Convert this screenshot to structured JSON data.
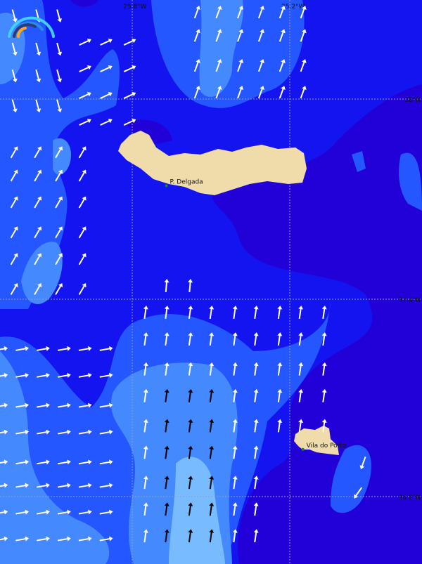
{
  "map": {
    "colors": {
      "sea_base": "#1414f0",
      "sea_dark": "#2200d8",
      "sea_mid": "#2457ff",
      "sea_light": "#4589ff",
      "sea_lightest": "#78bcff",
      "land": "#efdcaa",
      "arrow_light": "#ffffff",
      "arrow_dark": "#000000",
      "town_dot": "#1a8a1a"
    },
    "gridlines": {
      "lon_labels": [
        "25.8°W",
        "25.2°W"
      ],
      "lat_labels": [
        "38°N",
        "37.4°N",
        "36.8°N"
      ]
    },
    "places": [
      {
        "name": "P. Delgada",
        "lat": 37.74,
        "lon": -25.67
      },
      {
        "name": "Vila do Porto",
        "lat": 36.95,
        "lon": -25.15
      }
    ],
    "wind_groups": [
      {
        "lats": [
          38.26,
          38.19,
          38.1,
          38.02
        ],
        "lons": [
          -25.554,
          -25.472,
          -25.39,
          -25.31,
          -25.23,
          -25.15
        ],
        "heading_deg": 20,
        "color": "light"
      },
      {
        "lats": [
          38.25,
          38.15,
          38.07,
          37.98
        ],
        "lons": [
          -26.25,
          -26.16,
          -26.08
        ],
        "heading_deg": 165,
        "color": "light"
      },
      {
        "lats": [
          38.17,
          38.09,
          38.01,
          37.93
        ],
        "lons": [
          -25.98,
          -25.9,
          -25.81
        ],
        "heading_deg": 65,
        "color": "light"
      },
      {
        "lats": [
          37.84,
          37.77,
          37.69,
          37.6,
          37.52,
          37.43
        ],
        "lons": [
          -26.25,
          -26.16,
          -26.08,
          -25.99
        ],
        "heading_deg": 30,
        "color": "light"
      },
      {
        "lats": [
          37.44
        ],
        "lons": [
          -25.67,
          -25.58
        ],
        "heading_deg": 5,
        "color": "light"
      },
      {
        "lats": [
          37.36,
          37.28,
          37.19,
          37.11,
          37.02,
          36.94,
          36.85,
          36.77,
          36.69
        ],
        "lons": [
          -25.75,
          -25.67,
          -25.58,
          -25.5,
          -25.41,
          -25.33,
          -25.24,
          -25.16,
          -25.07
        ],
        "heading_deg": 8,
        "color": "light"
      },
      {
        "lats": [
          37.11,
          37.02,
          36.94,
          36.85,
          36.77,
          36.69
        ],
        "lons": [
          -25.67,
          -25.58,
          -25.5
        ],
        "heading_deg": 8,
        "color": "dark"
      },
      {
        "lats": [
          37.25,
          37.17,
          37.08,
          37.0,
          36.91,
          36.84,
          36.76,
          36.68
        ],
        "lons": [
          -26.3,
          -26.22,
          -26.14,
          -26.06,
          -25.98,
          -25.9
        ],
        "heading_deg": 80,
        "color": "light"
      },
      {
        "lats": [
          36.91
        ],
        "lons": [
          -24.92
        ],
        "heading_deg": 200,
        "color": "light"
      },
      {
        "lats": [
          36.82
        ],
        "lons": [
          -24.94
        ],
        "heading_deg": 215,
        "color": "light"
      }
    ]
  }
}
